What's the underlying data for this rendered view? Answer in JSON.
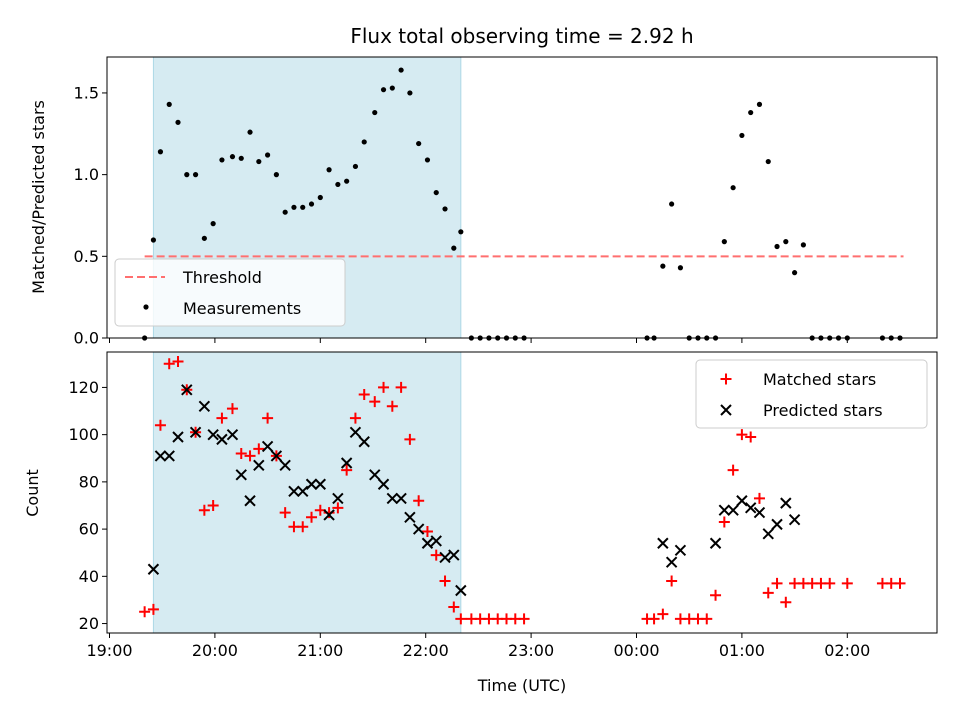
{
  "chart_data": {
    "type": "scatter",
    "title": "Flux total observing time = 2.92 h",
    "xlabel": "Time (UTC)",
    "x_ticks": [
      "19:00",
      "20:00",
      "21:00",
      "22:00",
      "23:00",
      "00:00",
      "01:00",
      "02:00"
    ],
    "shaded_interval": [
      "19:25",
      "22:20"
    ],
    "shade_color": "#add8e6",
    "top_panel": {
      "ylabel": "Matched/Predicted stars",
      "ylim": [
        0,
        1.72
      ],
      "y_ticks": [
        "0.0",
        "0.5",
        "1.0",
        "1.5"
      ],
      "threshold": {
        "name": "Threshold",
        "value": 0.5,
        "x_range": [
          "19:20",
          "02:32"
        ],
        "color": "#ff6f6f"
      },
      "measurements": {
        "name": "Measurements",
        "color": "#000000",
        "points": [
          [
            "19:20",
            0.0
          ],
          [
            "19:25",
            0.6
          ],
          [
            "19:29",
            1.14
          ],
          [
            "19:34",
            1.43
          ],
          [
            "19:39",
            1.32
          ],
          [
            "19:44",
            1.0
          ],
          [
            "19:49",
            1.0
          ],
          [
            "19:54",
            0.61
          ],
          [
            "19:59",
            0.7
          ],
          [
            "20:04",
            1.09
          ],
          [
            "20:10",
            1.11
          ],
          [
            "20:15",
            1.1
          ],
          [
            "20:20",
            1.26
          ],
          [
            "20:25",
            1.08
          ],
          [
            "20:30",
            1.12
          ],
          [
            "20:35",
            1.0
          ],
          [
            "20:40",
            0.77
          ],
          [
            "20:45",
            0.8
          ],
          [
            "20:50",
            0.8
          ],
          [
            "20:55",
            0.82
          ],
          [
            "21:00",
            0.86
          ],
          [
            "21:05",
            1.03
          ],
          [
            "21:10",
            0.94
          ],
          [
            "21:15",
            0.96
          ],
          [
            "21:20",
            1.05
          ],
          [
            "21:25",
            1.2
          ],
          [
            "21:31",
            1.38
          ],
          [
            "21:36",
            1.52
          ],
          [
            "21:41",
            1.53
          ],
          [
            "21:46",
            1.64
          ],
          [
            "21:51",
            1.5
          ],
          [
            "21:56",
            1.19
          ],
          [
            "22:01",
            1.09
          ],
          [
            "22:06",
            0.89
          ],
          [
            "22:11",
            0.79
          ],
          [
            "22:16",
            0.55
          ],
          [
            "22:20",
            0.65
          ],
          [
            "22:26",
            0.0
          ],
          [
            "22:31",
            0.0
          ],
          [
            "22:36",
            0.0
          ],
          [
            "22:41",
            0.0
          ],
          [
            "22:46",
            0.0
          ],
          [
            "22:51",
            0.0
          ],
          [
            "22:56",
            0.0
          ],
          [
            "00:06",
            0.0
          ],
          [
            "00:10",
            0.0
          ],
          [
            "00:15",
            0.44
          ],
          [
            "00:20",
            0.82
          ],
          [
            "00:25",
            0.43
          ],
          [
            "00:30",
            0.0
          ],
          [
            "00:35",
            0.0
          ],
          [
            "00:40",
            0.0
          ],
          [
            "00:45",
            0.0
          ],
          [
            "00:50",
            0.59
          ],
          [
            "00:55",
            0.92
          ],
          [
            "01:00",
            1.24
          ],
          [
            "01:05",
            1.38
          ],
          [
            "01:10",
            1.43
          ],
          [
            "01:15",
            1.08
          ],
          [
            "01:20",
            0.56
          ],
          [
            "01:25",
            0.59
          ],
          [
            "01:30",
            0.4
          ],
          [
            "01:35",
            0.57
          ],
          [
            "01:40",
            0.0
          ],
          [
            "01:45",
            0.0
          ],
          [
            "01:50",
            0.0
          ],
          [
            "01:55",
            0.0
          ],
          [
            "02:00",
            0.0
          ],
          [
            "02:20",
            0.0
          ],
          [
            "02:25",
            0.0
          ],
          [
            "02:30",
            0.0
          ]
        ]
      },
      "legend_position": "lower-left"
    },
    "bottom_panel": {
      "ylabel": "Count",
      "ylim": [
        16,
        135
      ],
      "y_ticks": [
        "20",
        "40",
        "60",
        "80",
        "100",
        "120"
      ],
      "legend_position": "upper-right",
      "series": [
        {
          "name": "Matched stars",
          "marker": "plus",
          "color": "#ff0000",
          "points": [
            [
              "19:20",
              25
            ],
            [
              "19:25",
              26
            ],
            [
              "19:29",
              104
            ],
            [
              "19:34",
              130
            ],
            [
              "19:39",
              131
            ],
            [
              "19:44",
              119
            ],
            [
              "19:49",
              101
            ],
            [
              "19:54",
              68
            ],
            [
              "19:59",
              70
            ],
            [
              "20:04",
              107
            ],
            [
              "20:10",
              111
            ],
            [
              "20:15",
              92
            ],
            [
              "20:20",
              91
            ],
            [
              "20:25",
              94
            ],
            [
              "20:30",
              107
            ],
            [
              "20:35",
              91
            ],
            [
              "20:40",
              67
            ],
            [
              "20:45",
              61
            ],
            [
              "20:50",
              61
            ],
            [
              "20:55",
              65
            ],
            [
              "21:00",
              68
            ],
            [
              "21:05",
              67
            ],
            [
              "21:10",
              69
            ],
            [
              "21:15",
              85
            ],
            [
              "21:20",
              107
            ],
            [
              "21:25",
              117
            ],
            [
              "21:31",
              114
            ],
            [
              "21:36",
              120
            ],
            [
              "21:41",
              112
            ],
            [
              "21:46",
              120
            ],
            [
              "21:51",
              98
            ],
            [
              "21:56",
              72
            ],
            [
              "22:01",
              59
            ],
            [
              "22:06",
              49
            ],
            [
              "22:11",
              38
            ],
            [
              "22:16",
              27
            ],
            [
              "22:20",
              22
            ],
            [
              "22:26",
              22
            ],
            [
              "22:31",
              22
            ],
            [
              "22:36",
              22
            ],
            [
              "22:41",
              22
            ],
            [
              "22:46",
              22
            ],
            [
              "22:51",
              22
            ],
            [
              "22:56",
              22
            ],
            [
              "00:06",
              22
            ],
            [
              "00:10",
              22
            ],
            [
              "00:15",
              24
            ],
            [
              "00:20",
              38
            ],
            [
              "00:25",
              22
            ],
            [
              "00:30",
              22
            ],
            [
              "00:35",
              22
            ],
            [
              "00:40",
              22
            ],
            [
              "00:45",
              32
            ],
            [
              "00:50",
              63
            ],
            [
              "00:55",
              85
            ],
            [
              "01:00",
              100
            ],
            [
              "01:05",
              99
            ],
            [
              "01:10",
              73
            ],
            [
              "01:15",
              33
            ],
            [
              "01:20",
              37
            ],
            [
              "01:25",
              29
            ],
            [
              "01:30",
              37
            ],
            [
              "01:35",
              37
            ],
            [
              "01:40",
              37
            ],
            [
              "01:45",
              37
            ],
            [
              "01:50",
              37
            ],
            [
              "02:00",
              37
            ],
            [
              "02:20",
              37
            ],
            [
              "02:25",
              37
            ],
            [
              "02:30",
              37
            ]
          ]
        },
        {
          "name": "Predicted stars",
          "marker": "x",
          "color": "#000000",
          "points": [
            [
              "19:25",
              43
            ],
            [
              "19:29",
              91
            ],
            [
              "19:34",
              91
            ],
            [
              "19:39",
              99
            ],
            [
              "19:44",
              119
            ],
            [
              "19:49",
              101
            ],
            [
              "19:54",
              112
            ],
            [
              "19:59",
              100
            ],
            [
              "20:04",
              98
            ],
            [
              "20:10",
              100
            ],
            [
              "20:15",
              83
            ],
            [
              "20:20",
              72
            ],
            [
              "20:25",
              87
            ],
            [
              "20:30",
              95
            ],
            [
              "20:35",
              91
            ],
            [
              "20:40",
              87
            ],
            [
              "20:45",
              76
            ],
            [
              "20:50",
              76
            ],
            [
              "20:55",
              79
            ],
            [
              "21:00",
              79
            ],
            [
              "21:05",
              66
            ],
            [
              "21:10",
              73
            ],
            [
              "21:15",
              88
            ],
            [
              "21:20",
              101
            ],
            [
              "21:25",
              97
            ],
            [
              "21:31",
              83
            ],
            [
              "21:36",
              79
            ],
            [
              "21:41",
              73
            ],
            [
              "21:46",
              73
            ],
            [
              "21:51",
              65
            ],
            [
              "21:56",
              60
            ],
            [
              "22:01",
              54
            ],
            [
              "22:06",
              55
            ],
            [
              "22:11",
              48
            ],
            [
              "22:16",
              49
            ],
            [
              "22:20",
              34
            ],
            [
              "00:15",
              54
            ],
            [
              "00:20",
              46
            ],
            [
              "00:25",
              51
            ],
            [
              "00:45",
              54
            ],
            [
              "00:50",
              68
            ],
            [
              "00:55",
              68
            ],
            [
              "01:00",
              72
            ],
            [
              "01:05",
              69
            ],
            [
              "01:10",
              67
            ],
            [
              "01:15",
              58
            ],
            [
              "01:20",
              62
            ],
            [
              "01:25",
              71
            ],
            [
              "01:30",
              64
            ]
          ]
        }
      ]
    }
  }
}
